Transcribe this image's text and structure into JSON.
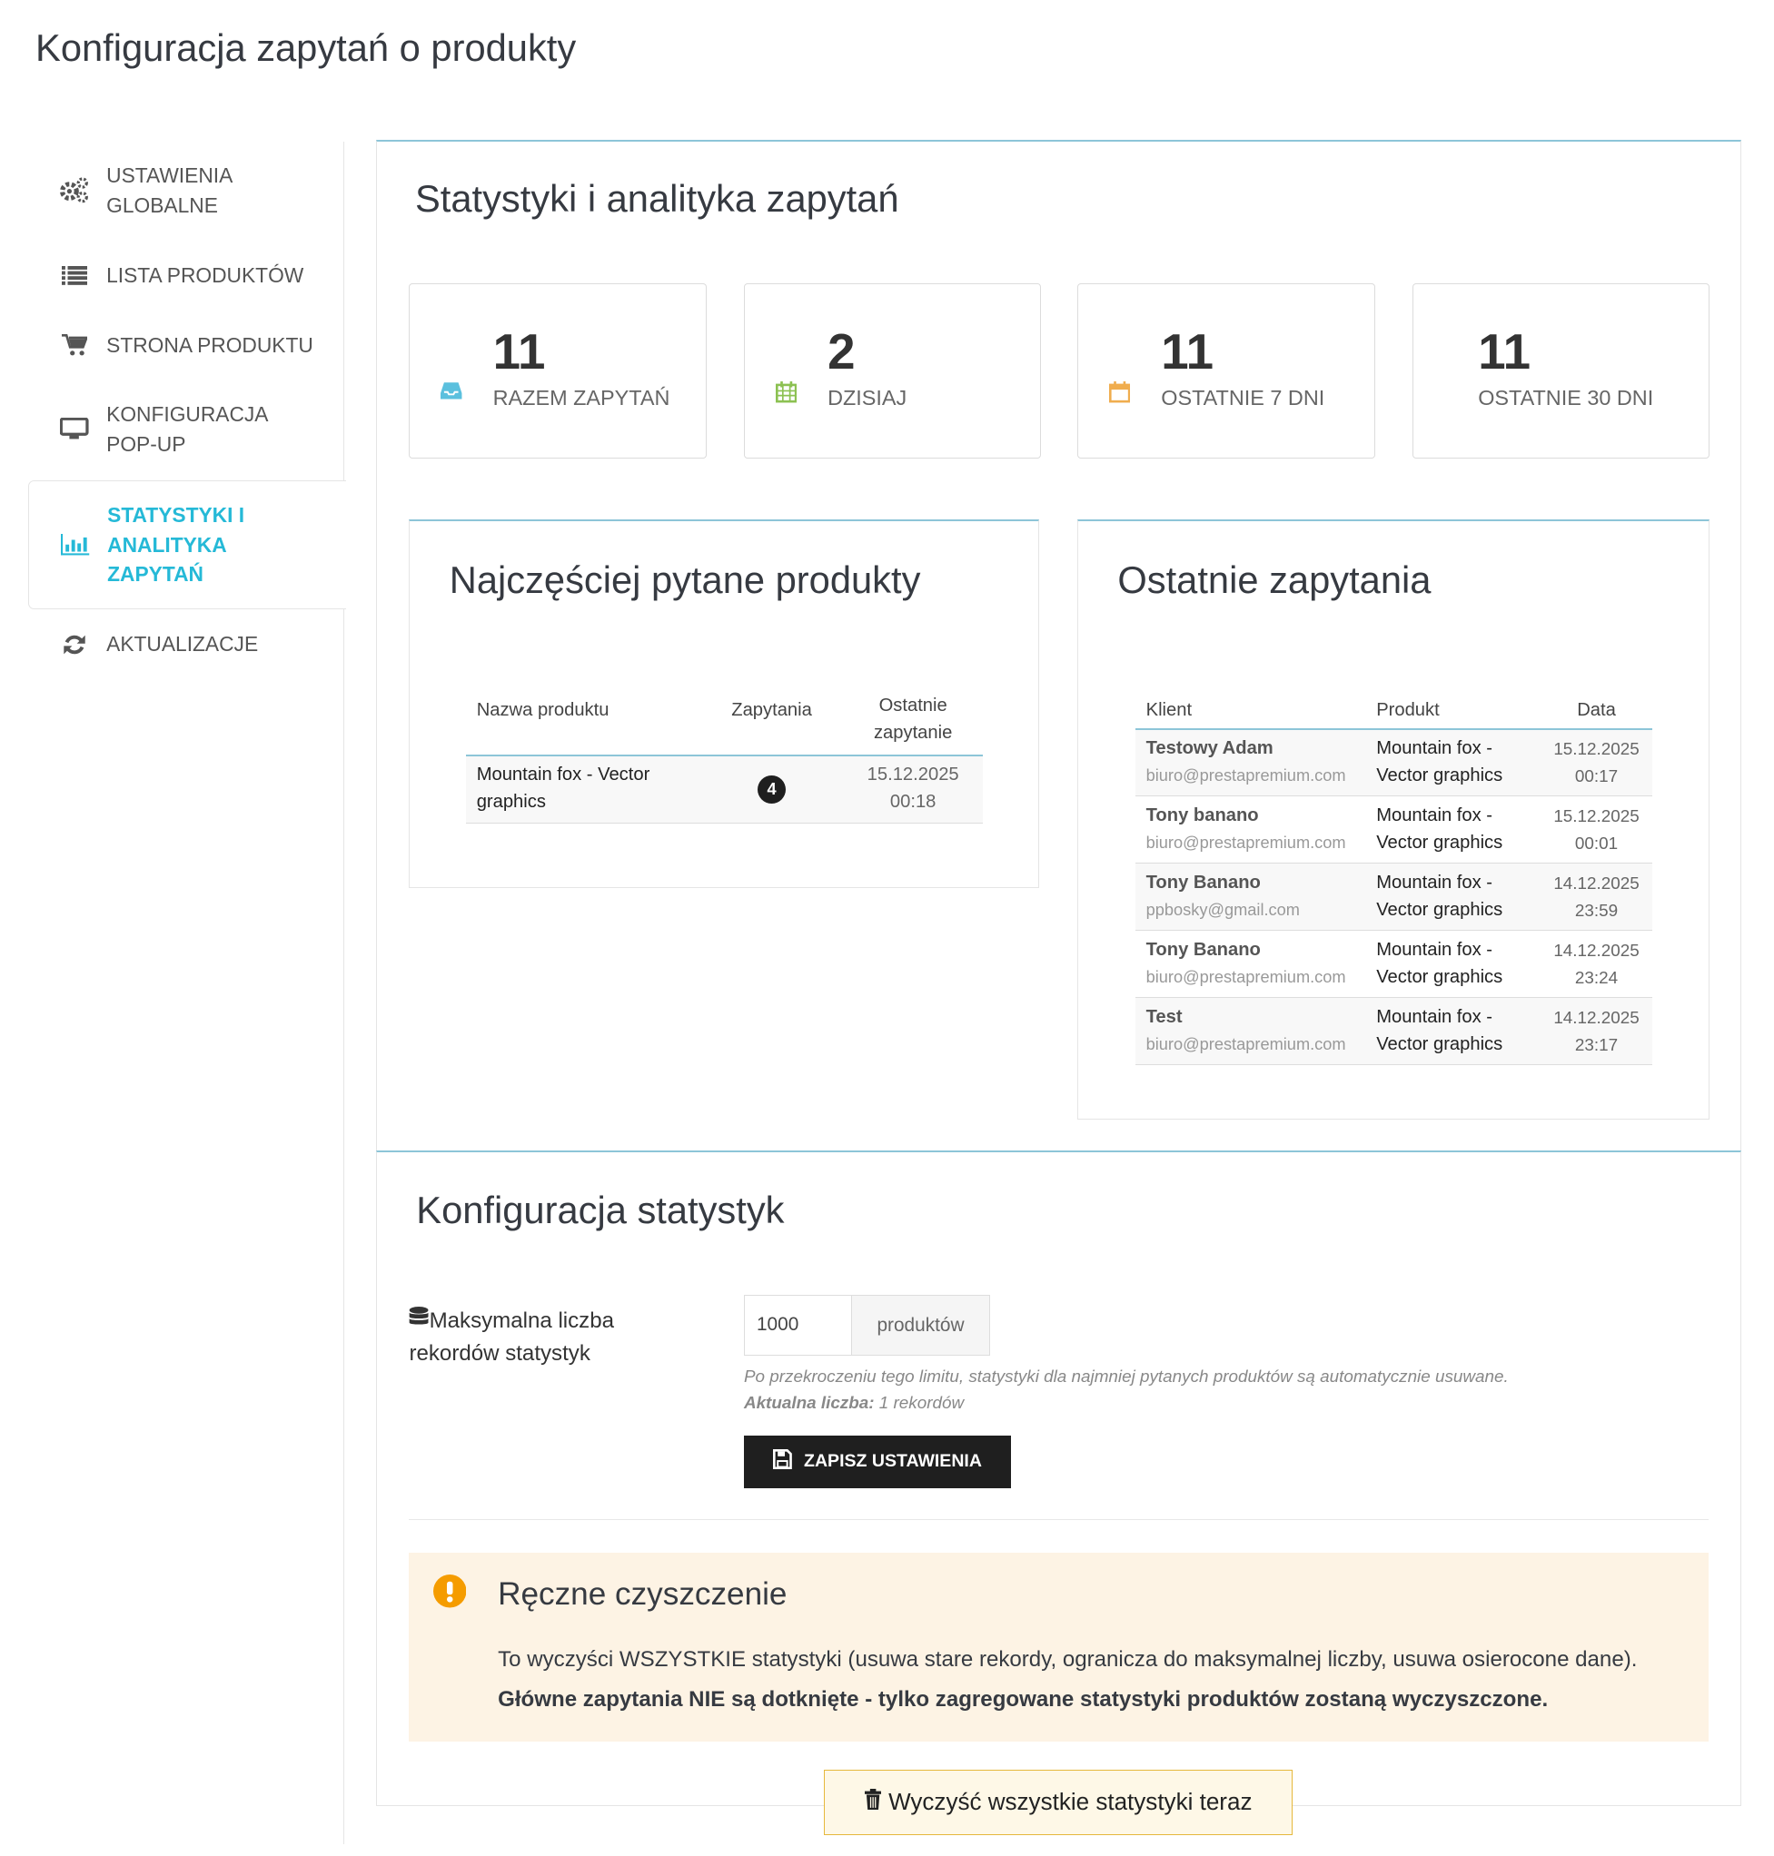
{
  "page_title": "Konfiguracja zapytań o produkty",
  "sidebar": {
    "items": [
      {
        "label": "USTAWIENIA GLOBALNE",
        "icon": "cogs-icon"
      },
      {
        "label": "LISTA PRODUKTÓW",
        "icon": "list-icon"
      },
      {
        "label": "STRONA PRODUKTU",
        "icon": "cart-icon"
      },
      {
        "label": "KONFIGURACJA POP-UP",
        "icon": "desktop-icon"
      },
      {
        "label": "STATYSTYKI I ANALITYKA ZAPYTAŃ",
        "icon": "bar-chart-icon",
        "active": true
      },
      {
        "label": "AKTUALIZACJE",
        "icon": "refresh-icon"
      }
    ],
    "active_color": "#25b9d7"
  },
  "stats": {
    "title": "Statystyki i analityka zapytań",
    "cards": [
      {
        "value": "11",
        "label": "RAZEM ZAPYTAŃ",
        "icon": "inbox-icon",
        "color": "#5bc0de"
      },
      {
        "value": "2",
        "label": "DZISIAJ",
        "icon": "calendar-icon",
        "color": "#8cc152"
      },
      {
        "value": "11",
        "label": "OSTATNIE 7 DNI",
        "icon": "calendar-empty-icon",
        "color": "#f0ad4e"
      },
      {
        "value": "11",
        "label": "OSTATNIE 30 DNI",
        "icon": ""
      }
    ]
  },
  "top_products": {
    "title": "Najczęściej pytane produkty",
    "headers": [
      "Nazwa produktu",
      "Zapytania",
      "Ostatnie zapytanie"
    ],
    "rows": [
      {
        "name": "Mountain fox - Vector graphics",
        "count": "4",
        "date": "15.12.2025",
        "time": "00:18"
      }
    ]
  },
  "recent": {
    "title": "Ostatnie zapytania",
    "headers": [
      "Klient",
      "Produkt",
      "Data"
    ],
    "rows": [
      {
        "name": "Testowy Adam",
        "email": "biuro@prestapremium.com",
        "product": "Mountain fox - Vector graphics",
        "date": "15.12.2025",
        "time": "00:17"
      },
      {
        "name": "Tony banano",
        "email": "biuro@prestapremium.com",
        "product": "Mountain fox - Vector graphics",
        "date": "15.12.2025",
        "time": "00:01"
      },
      {
        "name": "Tony Banano",
        "email": "ppbosky@gmail.com",
        "product": "Mountain fox - Vector graphics",
        "date": "14.12.2025",
        "time": "23:59"
      },
      {
        "name": "Tony Banano",
        "email": "biuro@prestapremium.com",
        "product": "Mountain fox - Vector graphics",
        "date": "14.12.2025",
        "time": "23:24"
      },
      {
        "name": "Test",
        "email": "biuro@prestapremium.com",
        "product": "Mountain fox - Vector graphics",
        "date": "14.12.2025",
        "time": "23:17"
      }
    ]
  },
  "config": {
    "title": "Konfiguracja statystyk",
    "field_label": "Maksymalna liczba rekordów statystyk",
    "field_value": "1000",
    "field_suffix": "produktów",
    "help": "Po przekroczeniu tego limitu, statystyki dla najmniej pytanych produktów są automatycznie usuwane.",
    "current_label": "Aktualna liczba:",
    "current_value": "1 rekordów",
    "save_label": "ZAPISZ USTAWIENIA"
  },
  "cleanup": {
    "title": "Ręczne czyszczenie",
    "text": "To wyczyści WSZYSTKIE statystyki (usuwa stare rekordy, ogranicza do maksymalnej liczby, usuwa osierocone dane).",
    "warning": "Główne zapytania NIE są dotknięte - tylko zagregowane statystyki produktów zostaną wyczyszczone.",
    "button_label": "Wyczyść wszystkie statystyki teraz",
    "alert_color": "#fdf3e4",
    "icon_color": "#f59c00"
  }
}
